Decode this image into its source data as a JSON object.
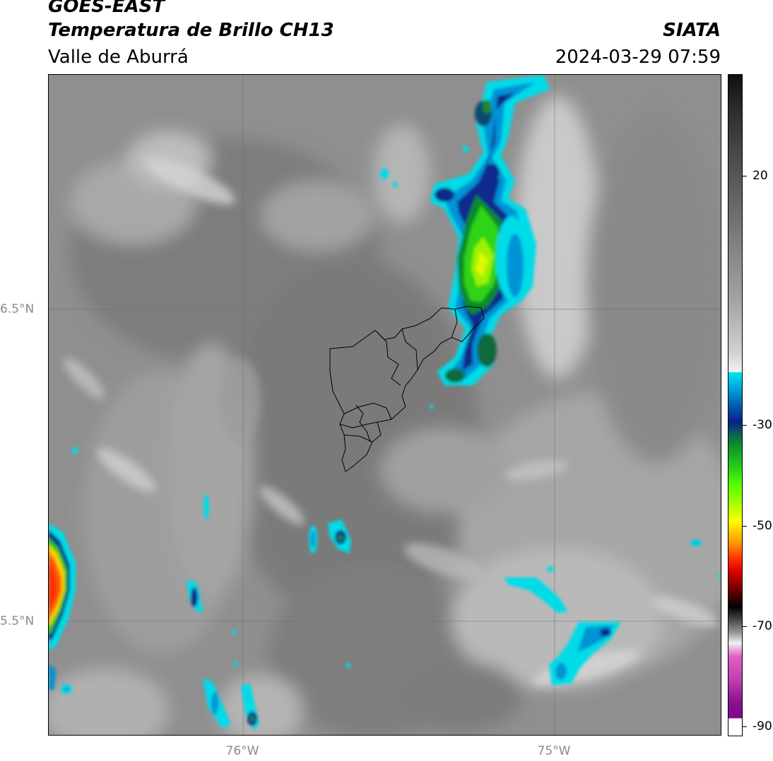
{
  "header": {
    "satellite": "GOES-EAST",
    "product": "Temperatura de Brillo CH13",
    "region": "Valle de Aburrá",
    "organization": "SIATA",
    "datetime": "2024-03-29 07:59"
  },
  "axes": {
    "lat_labels": [
      "6.5°N",
      "5.5°N"
    ],
    "lon_labels": [
      "76°W",
      "75°W"
    ]
  },
  "colorbar": {
    "tick_labels": [
      "20",
      "-30",
      "-50",
      "-70",
      "-90"
    ],
    "scheme": "brightness temperature enhanced IR",
    "colors": {
      "warm_gray": "#8e8e8e",
      "cold_cyan": "#00e5ee",
      "deep_blue": "#0a1f8a",
      "green": "#21c81a",
      "yellow": "#ffff00",
      "red": "#e00000",
      "black": "#000000",
      "purple": "#8a1090"
    }
  }
}
